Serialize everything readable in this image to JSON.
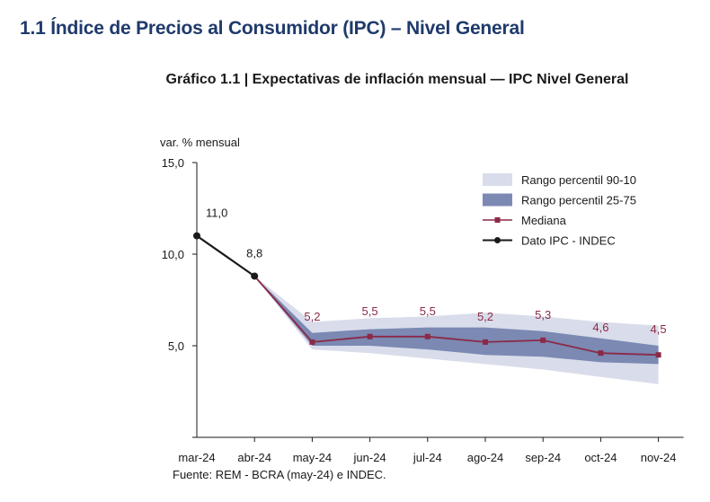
{
  "header": {
    "title": "1.1 Índice de Precios al Consumidor (IPC) – Nivel General"
  },
  "source": "Fuente: REM - BCRA (may-24) e INDEC.",
  "chart_data": {
    "type": "line",
    "title": "Gráfico 1.1 | Expectativas de inflación mensual — IPC Nivel General",
    "ylabel": "var. % mensual",
    "xlabel": "",
    "categories": [
      "mar-24",
      "abr-24",
      "may-24",
      "jun-24",
      "jul-24",
      "ago-24",
      "sep-24",
      "oct-24",
      "nov-24"
    ],
    "ylim": [
      0,
      15
    ],
    "yticks": [
      {
        "value": 5,
        "label": "5,0"
      },
      {
        "value": 10,
        "label": "10,0"
      },
      {
        "value": 15,
        "label": "15,0"
      }
    ],
    "grid": false,
    "legend_position": "top-right",
    "series": [
      {
        "name": "Rango percentil 90-10",
        "kind": "band",
        "color": "#d9dcea",
        "lower": [
          null,
          8.8,
          4.8,
          4.6,
          4.3,
          4.0,
          3.7,
          3.3,
          2.9
        ],
        "upper": [
          null,
          8.8,
          6.3,
          6.5,
          6.6,
          6.8,
          6.6,
          6.3,
          6.1
        ]
      },
      {
        "name": "Rango percentil 25-75",
        "kind": "band",
        "color": "#7b89b3",
        "lower": [
          null,
          8.8,
          5.0,
          5.0,
          4.8,
          4.5,
          4.4,
          4.1,
          4.0
        ],
        "upper": [
          null,
          8.8,
          5.7,
          5.9,
          6.0,
          6.0,
          5.8,
          5.4,
          5.0
        ]
      },
      {
        "name": "Mediana",
        "kind": "line",
        "color": "#8b2a47",
        "marker": "square",
        "x": [
          "abr-24",
          "may-24",
          "jun-24",
          "jul-24",
          "ago-24",
          "sep-24",
          "oct-24",
          "nov-24"
        ],
        "values": [
          8.8,
          5.2,
          5.5,
          5.5,
          5.2,
          5.3,
          4.6,
          4.5
        ],
        "labels": [
          null,
          "5,2",
          "5,5",
          "5,5",
          "5,2",
          "5,3",
          "4,6",
          "4,5"
        ]
      },
      {
        "name": "Dato IPC - INDEC",
        "kind": "line",
        "color": "#1a1a1a",
        "marker": "circle",
        "x": [
          "mar-24",
          "abr-24"
        ],
        "values": [
          11.0,
          8.8
        ],
        "labels": [
          "11,0",
          "8,8"
        ]
      }
    ]
  }
}
